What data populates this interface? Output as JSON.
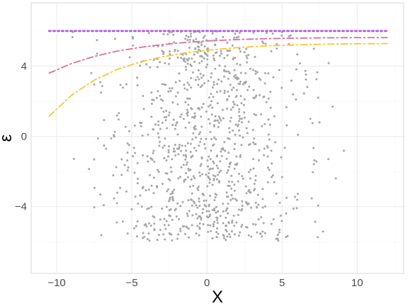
{
  "chart_data": {
    "type": "scatter",
    "title": "",
    "xlabel": "X",
    "ylabel": "ε",
    "xlim": [
      -11.7,
      13.1
    ],
    "ylim": [
      -7.8,
      7.6
    ],
    "x_ticks": [
      -10,
      -5,
      0,
      5,
      10
    ],
    "x_tick_labels": [
      "−10",
      "−5",
      "0",
      "5",
      "10"
    ],
    "y_ticks": [
      -4,
      0,
      4
    ],
    "y_tick_labels": [
      "−4",
      "0",
      "4"
    ],
    "x_minor_ticks": [
      -7.5,
      -2.5,
      2.5,
      7.5,
      12.5
    ],
    "y_minor_ticks": [
      -6,
      -2,
      2,
      6
    ],
    "grid": true,
    "legend": "none",
    "scatter": {
      "name": "",
      "color": "#a6a6a6",
      "n_points": 1000,
      "x_distribution": "approximately normal, mean 0, sd about 3, range -10.6 to 12",
      "y_distribution": "approximately uniform between -6 and 6",
      "x_range": [
        -10.6,
        12.0
      ],
      "y_range": [
        -6.0,
        6.0
      ]
    },
    "series": [
      {
        "name": "",
        "style": "dotted",
        "color": "#b464e6",
        "x": [
          -10.5,
          12
        ],
        "y": [
          6.0,
          6.0
        ]
      },
      {
        "name": "",
        "style": "dashdot",
        "color": "#dc6e9b",
        "x": [
          -10.5,
          -9,
          -7.5,
          -6,
          -4.5,
          -3,
          -1.5,
          0,
          2,
          4,
          6,
          8,
          10,
          12
        ],
        "y": [
          3.6,
          4.15,
          4.55,
          4.85,
          5.06,
          5.22,
          5.34,
          5.43,
          5.51,
          5.56,
          5.59,
          5.61,
          5.62,
          5.62
        ]
      },
      {
        "name": "",
        "style": "dashdot",
        "color": "#f5c832",
        "x": [
          -10.5,
          -9,
          -7.5,
          -6,
          -4.5,
          -3,
          -1.5,
          0,
          2,
          4,
          6,
          8,
          10,
          12
        ],
        "y": [
          1.15,
          2.35,
          3.2,
          3.8,
          4.22,
          4.52,
          4.74,
          4.9,
          5.05,
          5.15,
          5.21,
          5.25,
          5.27,
          5.28
        ]
      }
    ]
  }
}
